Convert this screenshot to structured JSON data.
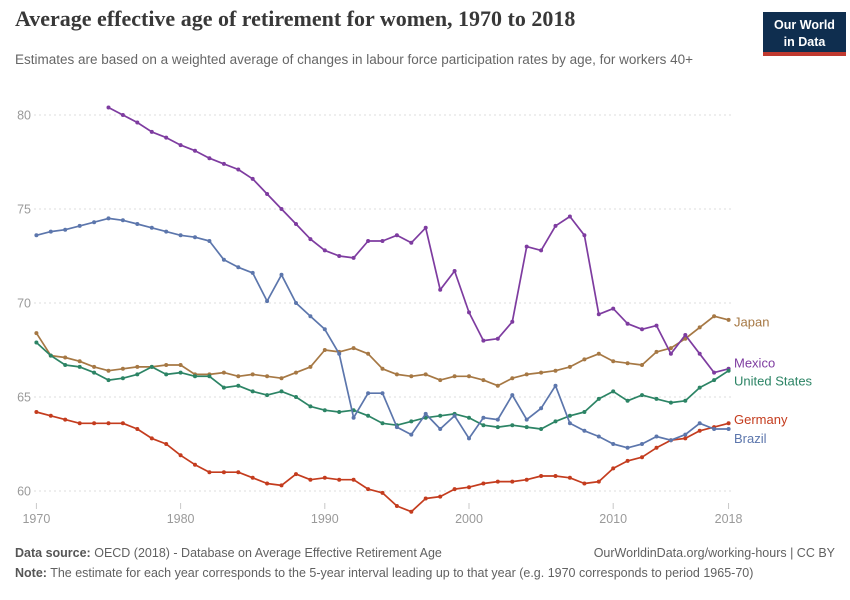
{
  "header": {
    "logo": {
      "line1": "Our World",
      "line2": "in Data",
      "bg_color": "#0F2E4F",
      "bar_color": "#C0392F"
    }
  },
  "chart_data": {
    "type": "line",
    "title": "Average effective age of retirement for women, 1970 to 2018",
    "subtitle": "Estimates are based on a weighted average of changes in labour force participation rates by age, for workers 40+",
    "xlabel": "",
    "ylabel": "",
    "x": {
      "min": 1970,
      "max": 2018,
      "ticks": [
        1970,
        1980,
        1990,
        2000,
        2010,
        2018
      ]
    },
    "y": {
      "min": 58.5,
      "max": 81,
      "ticks": [
        60,
        65,
        70,
        75,
        80
      ]
    },
    "grid": "horizontal-dashed",
    "legend_position": "end-of-line-labels",
    "series": [
      {
        "name": "Japan",
        "color": "#A67844",
        "start_year": 1970,
        "label_value": 69.0,
        "values": [
          68.4,
          67.2,
          67.1,
          66.9,
          66.6,
          66.4,
          66.5,
          66.6,
          66.6,
          66.7,
          66.7,
          66.2,
          66.2,
          66.3,
          66.1,
          66.2,
          66.1,
          66.0,
          66.3,
          66.6,
          67.5,
          67.4,
          67.6,
          67.3,
          66.5,
          66.2,
          66.1,
          66.2,
          65.9,
          66.1,
          66.1,
          65.9,
          65.6,
          66.0,
          66.2,
          66.3,
          66.4,
          66.6,
          67.0,
          67.3,
          66.9,
          66.8,
          66.7,
          67.4,
          67.6,
          68.1,
          68.7,
          69.3,
          69.1
        ]
      },
      {
        "name": "Mexico",
        "color": "#7E3CA0",
        "start_year": 1975,
        "label_value": 66.8,
        "values": [
          80.4,
          80.0,
          79.6,
          79.1,
          78.8,
          78.4,
          78.1,
          77.7,
          77.4,
          77.1,
          76.6,
          75.8,
          75.0,
          74.2,
          73.4,
          72.8,
          72.5,
          72.4,
          73.3,
          73.3,
          73.6,
          73.2,
          74.0,
          70.7,
          71.7,
          69.5,
          68.0,
          68.1,
          69.0,
          73.0,
          72.8,
          74.1,
          74.6,
          73.6,
          69.4,
          69.7,
          68.9,
          68.6,
          68.8,
          67.3,
          68.3,
          67.3,
          66.3,
          66.5
        ]
      },
      {
        "name": "United States",
        "color": "#2C8465",
        "start_year": 1970,
        "label_value": 65.85,
        "values": [
          67.9,
          67.2,
          66.7,
          66.6,
          66.3,
          65.9,
          66.0,
          66.2,
          66.6,
          66.2,
          66.3,
          66.1,
          66.1,
          65.5,
          65.6,
          65.3,
          65.1,
          65.3,
          65.0,
          64.5,
          64.3,
          64.2,
          64.3,
          64.0,
          63.6,
          63.5,
          63.7,
          63.9,
          64.0,
          64.1,
          63.9,
          63.5,
          63.4,
          63.5,
          63.4,
          63.3,
          63.7,
          64.0,
          64.2,
          64.9,
          65.3,
          64.8,
          65.1,
          64.9,
          64.7,
          64.8,
          65.5,
          65.9,
          66.4
        ]
      },
      {
        "name": "Germany",
        "color": "#C43C1E",
        "start_year": 1970,
        "label_value": 63.8,
        "values": [
          64.2,
          64.0,
          63.8,
          63.6,
          63.6,
          63.6,
          63.6,
          63.3,
          62.8,
          62.5,
          61.9,
          61.4,
          61.0,
          61.0,
          61.0,
          60.7,
          60.4,
          60.3,
          60.9,
          60.6,
          60.7,
          60.6,
          60.6,
          60.1,
          59.9,
          59.2,
          58.9,
          59.6,
          59.7,
          60.1,
          60.2,
          60.4,
          60.5,
          60.5,
          60.6,
          60.8,
          60.8,
          60.7,
          60.4,
          60.5,
          61.2,
          61.6,
          61.8,
          62.3,
          62.7,
          62.8,
          63.2,
          63.4,
          63.6
        ]
      },
      {
        "name": "Brazil",
        "color": "#5C76AC",
        "start_year": 1970,
        "label_value": 62.8,
        "values": [
          73.6,
          73.8,
          73.9,
          74.1,
          74.3,
          74.5,
          74.4,
          74.2,
          74.0,
          73.8,
          73.6,
          73.5,
          73.3,
          72.3,
          71.9,
          71.6,
          70.1,
          71.5,
          70.0,
          69.3,
          68.6,
          67.3,
          63.9,
          65.2,
          65.2,
          63.4,
          63.0,
          64.1,
          63.3,
          64.0,
          62.8,
          63.9,
          63.8,
          65.1,
          63.8,
          64.4,
          65.6,
          63.6,
          63.2,
          62.9,
          62.5,
          62.3,
          62.5,
          62.9,
          62.7,
          63.0,
          63.6,
          63.3,
          63.3
        ]
      }
    ]
  },
  "footer": {
    "data_source_label": "Data source:",
    "data_source_text": "OECD (2018) - Database on Average Effective Retirement Age",
    "link_text": "OurWorldinData.org/working-hours | CC BY",
    "note_label": "Note:",
    "note_text": "The estimate for each year corresponds to the 5-year interval leading up to that year (e.g. 1970 corresponds to period 1965-70)"
  }
}
